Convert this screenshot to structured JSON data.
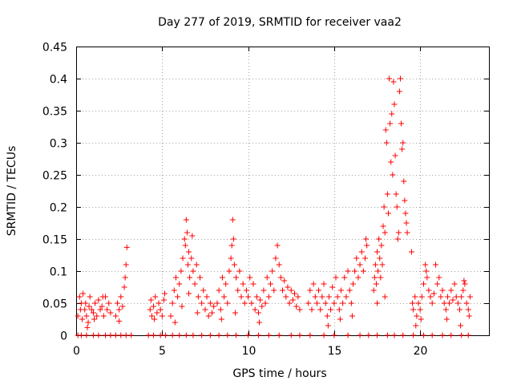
{
  "chart_data": {
    "type": "scatter",
    "title": "Day 277 of 2019, SRMTID for receiver vaa2",
    "xlabel": "GPS time / hours",
    "ylabel": "SRMTID / TECUs",
    "xlim": [
      0,
      24
    ],
    "ylim": [
      0,
      0.45
    ],
    "xticks": [
      0,
      5,
      10,
      15,
      20
    ],
    "yticks": [
      "0",
      "0.05",
      "0.1",
      "0.15",
      "0.2",
      "0.25",
      "0.3",
      "0.35",
      "0.4",
      "0.45"
    ],
    "grid": true,
    "marker": "+",
    "color": "#ff0000",
    "series": [
      {
        "name": "vaa2",
        "points": [
          [
            0.1,
            0
          ],
          [
            0.3,
            0
          ],
          [
            0.6,
            0
          ],
          [
            1.0,
            0
          ],
          [
            1.3,
            0
          ],
          [
            1.7,
            0
          ],
          [
            2.0,
            0
          ],
          [
            2.3,
            0
          ],
          [
            2.6,
            0
          ],
          [
            2.9,
            0
          ],
          [
            3.2,
            0
          ],
          [
            4.2,
            0
          ],
          [
            4.5,
            0
          ],
          [
            4.9,
            0
          ],
          [
            5.2,
            0
          ],
          [
            5.6,
            0
          ],
          [
            6.0,
            0
          ],
          [
            6.4,
            0
          ],
          [
            6.8,
            0
          ],
          [
            7.3,
            0
          ],
          [
            7.8,
            0
          ],
          [
            8.3,
            0
          ],
          [
            8.8,
            0
          ],
          [
            9.3,
            0
          ],
          [
            10.0,
            0
          ],
          [
            10.6,
            0
          ],
          [
            11.2,
            0
          ],
          [
            11.8,
            0
          ],
          [
            12.5,
            0
          ],
          [
            13.0,
            0
          ],
          [
            13.6,
            0
          ],
          [
            14.4,
            0
          ],
          [
            15.0,
            0
          ],
          [
            15.8,
            0
          ],
          [
            16.5,
            0
          ],
          [
            17.0,
            0
          ],
          [
            17.5,
            0
          ],
          [
            18.1,
            0
          ],
          [
            18.5,
            0
          ],
          [
            19.0,
            0
          ],
          [
            19.6,
            0
          ],
          [
            20.2,
            0
          ],
          [
            20.7,
            0
          ],
          [
            21.3,
            0
          ],
          [
            21.8,
            0
          ],
          [
            22.4,
            0
          ],
          [
            22.8,
            0
          ],
          [
            0.1,
            0.03
          ],
          [
            0.2,
            0.06
          ],
          [
            0.25,
            0.04
          ],
          [
            0.3,
            0.05
          ],
          [
            0.35,
            0.025
          ],
          [
            0.4,
            0.065
          ],
          [
            0.5,
            0.04
          ],
          [
            0.55,
            0.05
          ],
          [
            0.6,
            0.03
          ],
          [
            0.7,
            0.02
          ],
          [
            0.75,
            0.045
          ],
          [
            0.8,
            0.06
          ],
          [
            0.9,
            0.04
          ],
          [
            1.0,
            0.035
          ],
          [
            1.1,
            0.05
          ],
          [
            1.2,
            0.03
          ],
          [
            1.3,
            0.055
          ],
          [
            1.4,
            0.04
          ],
          [
            1.5,
            0.045
          ],
          [
            1.6,
            0.03
          ],
          [
            1.7,
            0.06
          ],
          [
            1.8,
            0.04
          ],
          [
            1.9,
            0.05
          ],
          [
            2.0,
            0.035
          ],
          [
            0.65,
            0.012
          ],
          [
            1.05,
            0.025
          ],
          [
            1.55,
            0.06
          ],
          [
            2.3,
            0.03
          ],
          [
            2.4,
            0.05
          ],
          [
            2.5,
            0.04
          ],
          [
            2.6,
            0.06
          ],
          [
            2.7,
            0.045
          ],
          [
            2.8,
            0.075
          ],
          [
            2.85,
            0.09
          ],
          [
            2.9,
            0.11
          ],
          [
            2.95,
            0.137
          ],
          [
            2.5,
            0.022
          ],
          [
            4.3,
            0.04
          ],
          [
            4.35,
            0.055
          ],
          [
            4.4,
            0.03
          ],
          [
            4.5,
            0.045
          ],
          [
            4.6,
            0.06
          ],
          [
            4.7,
            0.035
          ],
          [
            4.8,
            0.05
          ],
          [
            4.9,
            0.04
          ],
          [
            5.0,
            0.03
          ],
          [
            5.1,
            0.055
          ],
          [
            5.15,
            0.065
          ],
          [
            4.55,
            0.025
          ],
          [
            5.5,
            0.03
          ],
          [
            5.6,
            0.05
          ],
          [
            5.7,
            0.07
          ],
          [
            5.8,
            0.09
          ],
          [
            5.9,
            0.06
          ],
          [
            6.0,
            0.08
          ],
          [
            6.1,
            0.1
          ],
          [
            6.2,
            0.12
          ],
          [
            6.3,
            0.15
          ],
          [
            6.35,
            0.14
          ],
          [
            6.4,
            0.18
          ],
          [
            6.45,
            0.16
          ],
          [
            6.5,
            0.11
          ],
          [
            6.55,
            0.13
          ],
          [
            6.6,
            0.09
          ],
          [
            6.7,
            0.12
          ],
          [
            6.75,
            0.155
          ],
          [
            6.8,
            0.1
          ],
          [
            6.9,
            0.08
          ],
          [
            7.0,
            0.11
          ],
          [
            7.1,
            0.06
          ],
          [
            7.2,
            0.09
          ],
          [
            7.3,
            0.05
          ],
          [
            7.4,
            0.07
          ],
          [
            7.5,
            0.04
          ],
          [
            7.6,
            0.06
          ],
          [
            7.7,
            0.03
          ],
          [
            7.8,
            0.05
          ],
          [
            7.9,
            0.035
          ],
          [
            8.0,
            0.045
          ],
          [
            5.75,
            0.02
          ],
          [
            6.15,
            0.045
          ],
          [
            6.55,
            0.065
          ],
          [
            7.05,
            0.035
          ],
          [
            8.2,
            0.05
          ],
          [
            8.3,
            0.07
          ],
          [
            8.4,
            0.04
          ],
          [
            8.5,
            0.09
          ],
          [
            8.6,
            0.06
          ],
          [
            8.7,
            0.08
          ],
          [
            8.8,
            0.05
          ],
          [
            8.9,
            0.1
          ],
          [
            9.0,
            0.12
          ],
          [
            9.05,
            0.14
          ],
          [
            9.1,
            0.18
          ],
          [
            9.15,
            0.15
          ],
          [
            9.2,
            0.11
          ],
          [
            9.3,
            0.09
          ],
          [
            9.4,
            0.07
          ],
          [
            9.5,
            0.1
          ],
          [
            9.6,
            0.06
          ],
          [
            9.7,
            0.08
          ],
          [
            9.8,
            0.05
          ],
          [
            9.9,
            0.07
          ],
          [
            10.0,
            0.06
          ],
          [
            10.1,
            0.09
          ],
          [
            10.2,
            0.05
          ],
          [
            10.3,
            0.08
          ],
          [
            10.4,
            0.04
          ],
          [
            10.5,
            0.06
          ],
          [
            10.6,
            0.035
          ],
          [
            10.7,
            0.055
          ],
          [
            10.8,
            0.045
          ],
          [
            10.9,
            0.07
          ],
          [
            11.0,
            0.05
          ],
          [
            11.1,
            0.09
          ],
          [
            11.2,
            0.06
          ],
          [
            11.3,
            0.08
          ],
          [
            11.4,
            0.1
          ],
          [
            11.5,
            0.07
          ],
          [
            11.6,
            0.12
          ],
          [
            11.7,
            0.14
          ],
          [
            11.8,
            0.11
          ],
          [
            11.9,
            0.09
          ],
          [
            12.0,
            0.07
          ],
          [
            12.1,
            0.085
          ],
          [
            12.2,
            0.06
          ],
          [
            12.3,
            0.075
          ],
          [
            12.4,
            0.05
          ],
          [
            12.5,
            0.07
          ],
          [
            12.6,
            0.055
          ],
          [
            12.7,
            0.065
          ],
          [
            12.8,
            0.045
          ],
          [
            12.9,
            0.06
          ],
          [
            13.0,
            0.04
          ],
          [
            8.45,
            0.025
          ],
          [
            9.25,
            0.035
          ],
          [
            10.65,
            0.02
          ],
          [
            13.5,
            0.05
          ],
          [
            13.6,
            0.07
          ],
          [
            13.7,
            0.04
          ],
          [
            13.8,
            0.08
          ],
          [
            13.9,
            0.06
          ],
          [
            14.0,
            0.05
          ],
          [
            14.1,
            0.07
          ],
          [
            14.2,
            0.04
          ],
          [
            14.3,
            0.06
          ],
          [
            14.4,
            0.08
          ],
          [
            14.5,
            0.05
          ],
          [
            14.6,
            0.03
          ],
          [
            14.7,
            0.06
          ],
          [
            14.8,
            0.04
          ],
          [
            14.9,
            0.075
          ],
          [
            15.0,
            0.05
          ],
          [
            15.1,
            0.09
          ],
          [
            15.2,
            0.06
          ],
          [
            15.3,
            0.04
          ],
          [
            15.4,
            0.07
          ],
          [
            15.5,
            0.05
          ],
          [
            15.6,
            0.09
          ],
          [
            15.7,
            0.06
          ],
          [
            15.8,
            0.1
          ],
          [
            15.9,
            0.07
          ],
          [
            16.0,
            0.05
          ],
          [
            16.1,
            0.08
          ],
          [
            16.2,
            0.1
          ],
          [
            16.3,
            0.12
          ],
          [
            16.4,
            0.09
          ],
          [
            16.5,
            0.11
          ],
          [
            16.6,
            0.13
          ],
          [
            16.7,
            0.1
          ],
          [
            16.8,
            0.12
          ],
          [
            16.85,
            0.15
          ],
          [
            16.9,
            0.14
          ],
          [
            14.65,
            0.015
          ],
          [
            15.35,
            0.025
          ],
          [
            16.05,
            0.03
          ],
          [
            17.3,
            0.07
          ],
          [
            17.35,
            0.09
          ],
          [
            17.4,
            0.11
          ],
          [
            17.45,
            0.08
          ],
          [
            17.5,
            0.13
          ],
          [
            17.55,
            0.1
          ],
          [
            17.6,
            0.15
          ],
          [
            17.65,
            0.12
          ],
          [
            17.7,
            0.09
          ],
          [
            17.75,
            0.14
          ],
          [
            17.8,
            0.11
          ],
          [
            17.85,
            0.17
          ],
          [
            17.9,
            0.2
          ],
          [
            17.95,
            0.16
          ],
          [
            18.0,
            0.32
          ],
          [
            18.05,
            0.3
          ],
          [
            18.1,
            0.22
          ],
          [
            18.2,
            0.4
          ],
          [
            18.25,
            0.33
          ],
          [
            18.3,
            0.27
          ],
          [
            18.35,
            0.345
          ],
          [
            18.4,
            0.25
          ],
          [
            18.45,
            0.395
          ],
          [
            18.5,
            0.36
          ],
          [
            18.55,
            0.28
          ],
          [
            18.6,
            0.22
          ],
          [
            18.7,
            0.15
          ],
          [
            18.75,
            0.16
          ],
          [
            18.8,
            0.38
          ],
          [
            18.85,
            0.4
          ],
          [
            18.9,
            0.33
          ],
          [
            18.95,
            0.29
          ],
          [
            19.0,
            0.3
          ],
          [
            19.05,
            0.24
          ],
          [
            19.1,
            0.21
          ],
          [
            19.15,
            0.19
          ],
          [
            19.2,
            0.175
          ],
          [
            19.25,
            0.16
          ],
          [
            18.15,
            0.19
          ],
          [
            18.65,
            0.2
          ],
          [
            17.5,
            0.05
          ],
          [
            17.95,
            0.06
          ],
          [
            19.5,
            0.13
          ],
          [
            19.55,
            0.05
          ],
          [
            19.6,
            0.04
          ],
          [
            19.7,
            0.06
          ],
          [
            19.8,
            0.03
          ],
          [
            19.9,
            0.05
          ],
          [
            20.0,
            0.04
          ],
          [
            20.1,
            0.06
          ],
          [
            20.2,
            0.08
          ],
          [
            20.3,
            0.11
          ],
          [
            20.35,
            0.1
          ],
          [
            20.4,
            0.09
          ],
          [
            20.5,
            0.07
          ],
          [
            20.6,
            0.06
          ],
          [
            19.75,
            0.015
          ],
          [
            20.05,
            0.025
          ],
          [
            20.7,
            0.05
          ],
          [
            20.8,
            0.065
          ],
          [
            20.9,
            0.11
          ],
          [
            21.0,
            0.08
          ],
          [
            21.1,
            0.09
          ],
          [
            21.2,
            0.06
          ],
          [
            21.3,
            0.07
          ],
          [
            21.4,
            0.05
          ],
          [
            21.5,
            0.04
          ],
          [
            21.6,
            0.06
          ],
          [
            21.7,
            0.05
          ],
          [
            21.8,
            0.07
          ],
          [
            21.9,
            0.055
          ],
          [
            22.0,
            0.08
          ],
          [
            22.1,
            0.06
          ],
          [
            22.2,
            0.05
          ],
          [
            22.3,
            0.04
          ],
          [
            22.4,
            0.06
          ],
          [
            22.5,
            0.07
          ],
          [
            22.55,
            0.085
          ],
          [
            22.6,
            0.08
          ],
          [
            22.7,
            0.05
          ],
          [
            22.8,
            0.04
          ],
          [
            22.85,
            0.03
          ],
          [
            22.9,
            0.06
          ],
          [
            21.55,
            0.025
          ],
          [
            22.35,
            0.015
          ]
        ]
      }
    ]
  }
}
